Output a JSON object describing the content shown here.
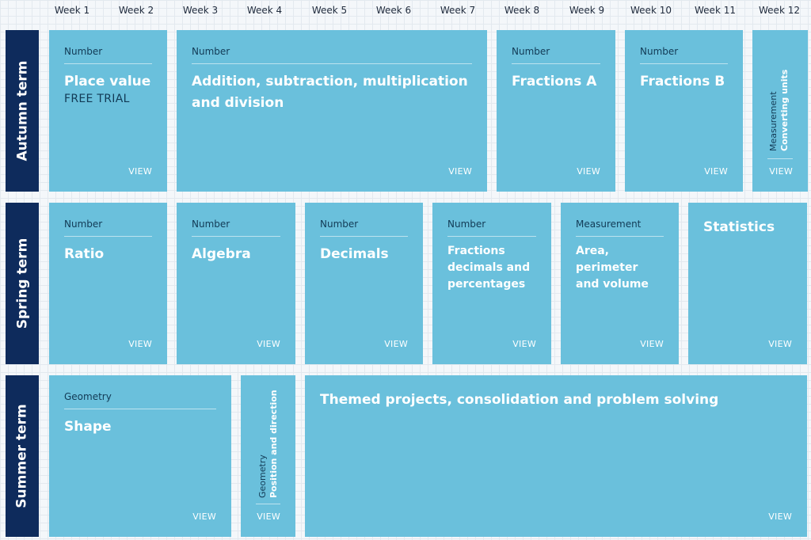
{
  "weeks": [
    "Week 1",
    "Week 2",
    "Week 3",
    "Week 4",
    "Week 5",
    "Week 6",
    "Week 7",
    "Week 8",
    "Week 9",
    "Week 10",
    "Week 11",
    "Week 12"
  ],
  "terms": {
    "autumn": "Autumn term",
    "spring": "Spring term",
    "summer": "Summer term"
  },
  "view_label": "VIEW",
  "autumn": {
    "place_value": {
      "topic": "Number",
      "title": "Place value",
      "badge": "FREE TRIAL"
    },
    "addition": {
      "topic": "Number",
      "title": "Addition, subtraction, multiplication and division"
    },
    "fractions_a": {
      "topic": "Number",
      "title": "Fractions A"
    },
    "fractions_b": {
      "topic": "Number",
      "title": "Fractions B"
    },
    "converting": {
      "topic": "Measurement",
      "title": "Converting units"
    }
  },
  "spring": {
    "ratio": {
      "topic": "Number",
      "title": "Ratio"
    },
    "algebra": {
      "topic": "Number",
      "title": "Algebra"
    },
    "decimals": {
      "topic": "Number",
      "title": "Decimals"
    },
    "fdp": {
      "topic": "Number",
      "title": "Fractions decimals and percentages"
    },
    "area": {
      "topic": "Measurement",
      "title": "Area, perimeter and volume"
    },
    "statistics": {
      "title": "Statistics"
    }
  },
  "summer": {
    "shape": {
      "topic": "Geometry",
      "title": "Shape"
    },
    "position": {
      "topic": "Geometry",
      "title": "Position and direction"
    },
    "themed": {
      "title": "Themed projects, consolidation and problem solving"
    }
  },
  "colors": {
    "card": "#6ac0dc",
    "term": "#0e2b5c",
    "topic_text": "#123a55"
  }
}
